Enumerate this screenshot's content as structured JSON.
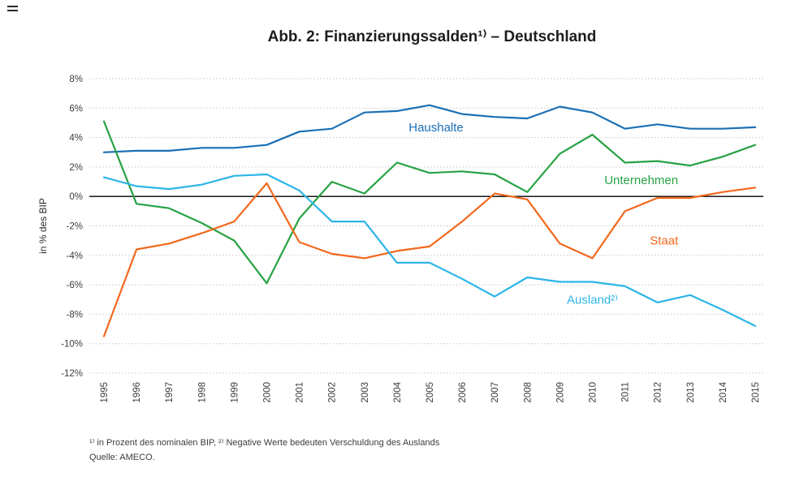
{
  "chart_data": {
    "type": "line",
    "title": "Abb. 2: Finanzierungssalden¹⁾ – Deutschland",
    "ylabel": "in % des BIP",
    "xlabel": "",
    "x": [
      1995,
      1996,
      1997,
      1998,
      1999,
      2000,
      2001,
      2002,
      2003,
      2004,
      2005,
      2006,
      2007,
      2008,
      2009,
      2010,
      2011,
      2012,
      2013,
      2014,
      2015
    ],
    "ylim": [
      -12,
      8
    ],
    "ytick_step": 2,
    "ytick_suffix": "%",
    "grid": "dotted horizontal gridlines, solid black zero line",
    "legend_position": "inline colored labels next to lines",
    "series": [
      {
        "name": "Haushalte",
        "label": "Haushalte",
        "color": "#1a6fb5",
        "values": [
          3.0,
          3.1,
          3.1,
          3.3,
          3.3,
          3.5,
          4.4,
          4.6,
          5.7,
          5.8,
          6.2,
          5.6,
          5.4,
          5.3,
          6.1,
          5.7,
          4.6,
          4.9,
          4.6,
          4.6,
          4.7
        ],
        "label_pos": {
          "year": 2005.2,
          "value": 4.7
        }
      },
      {
        "name": "Unternehmen",
        "label": "Unternehmen",
        "color": "#27a244",
        "values": [
          5.1,
          -0.5,
          -0.8,
          -1.8,
          -3.0,
          -5.9,
          -1.5,
          1.0,
          0.2,
          2.3,
          1.6,
          1.7,
          1.5,
          0.3,
          2.9,
          4.2,
          2.3,
          2.4,
          2.1,
          2.7,
          3.5
        ],
        "label_pos": {
          "year": 2011.5,
          "value": 1.1
        }
      },
      {
        "name": "Staat",
        "label": "Staat",
        "color": "#f2681c",
        "values": [
          -9.5,
          -3.6,
          -3.2,
          -2.5,
          -1.7,
          0.9,
          -3.1,
          -3.9,
          -4.2,
          -3.7,
          -3.4,
          -1.7,
          0.2,
          -0.2,
          -3.2,
          -4.2,
          -1.0,
          -0.1,
          -0.1,
          0.3,
          0.6
        ],
        "label_pos": {
          "year": 2012.2,
          "value": -3.0
        }
      },
      {
        "name": "Ausland",
        "label": "Ausland²⁾",
        "color": "#2cb5e8",
        "values": [
          1.3,
          0.7,
          0.5,
          0.8,
          1.4,
          1.5,
          0.4,
          -1.7,
          -1.7,
          -4.5,
          -4.5,
          -5.6,
          -6.8,
          -5.5,
          -5.8,
          -5.8,
          -6.1,
          -7.2,
          -6.7,
          -7.7,
          -8.8
        ],
        "label_pos": {
          "year": 2010.0,
          "value": -7.0
        }
      }
    ],
    "footnote": "¹⁾ in Prozent des nominalen BIP, ²⁾ Negative Werte bedeuten Verschuldung des Auslands",
    "source": "Quelle: AMECO."
  }
}
